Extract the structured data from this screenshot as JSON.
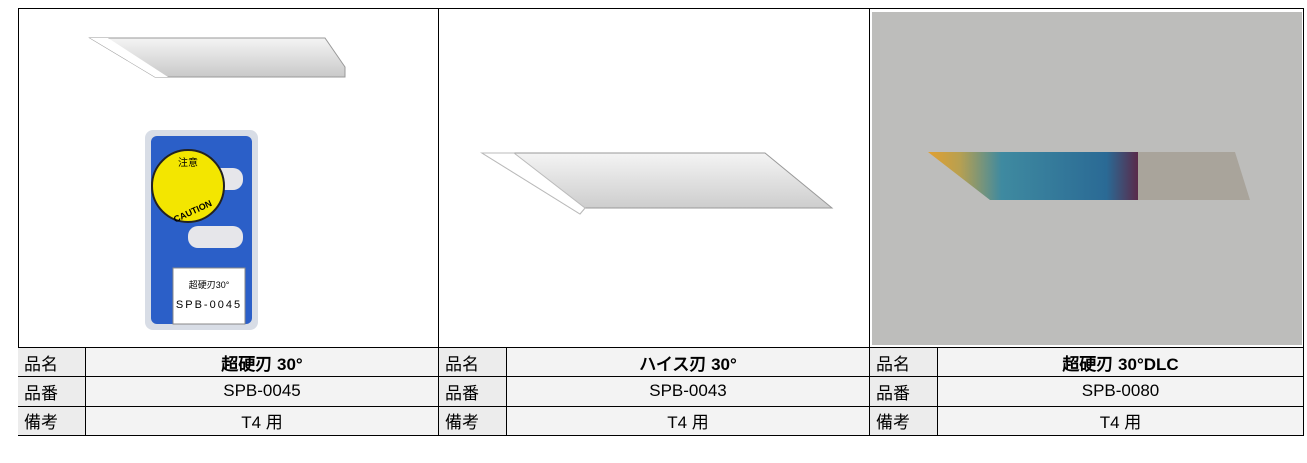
{
  "labels": {
    "name": "品名",
    "code": "品番",
    "note": "備考"
  },
  "package": {
    "caution": "CAUTION",
    "warning": "注意",
    "label": [
      "超硬刃30°",
      "SPB-0045"
    ]
  },
  "products": [
    {
      "name": "超硬刃 30°",
      "code": "SPB-0045",
      "note": "T4 用"
    },
    {
      "name": "ハイス刃 30°",
      "code": "SPB-0043",
      "note": "T4 用"
    },
    {
      "name": "超硬刃 30°DLC",
      "code": "SPB-0080",
      "note": "T4 用"
    }
  ]
}
